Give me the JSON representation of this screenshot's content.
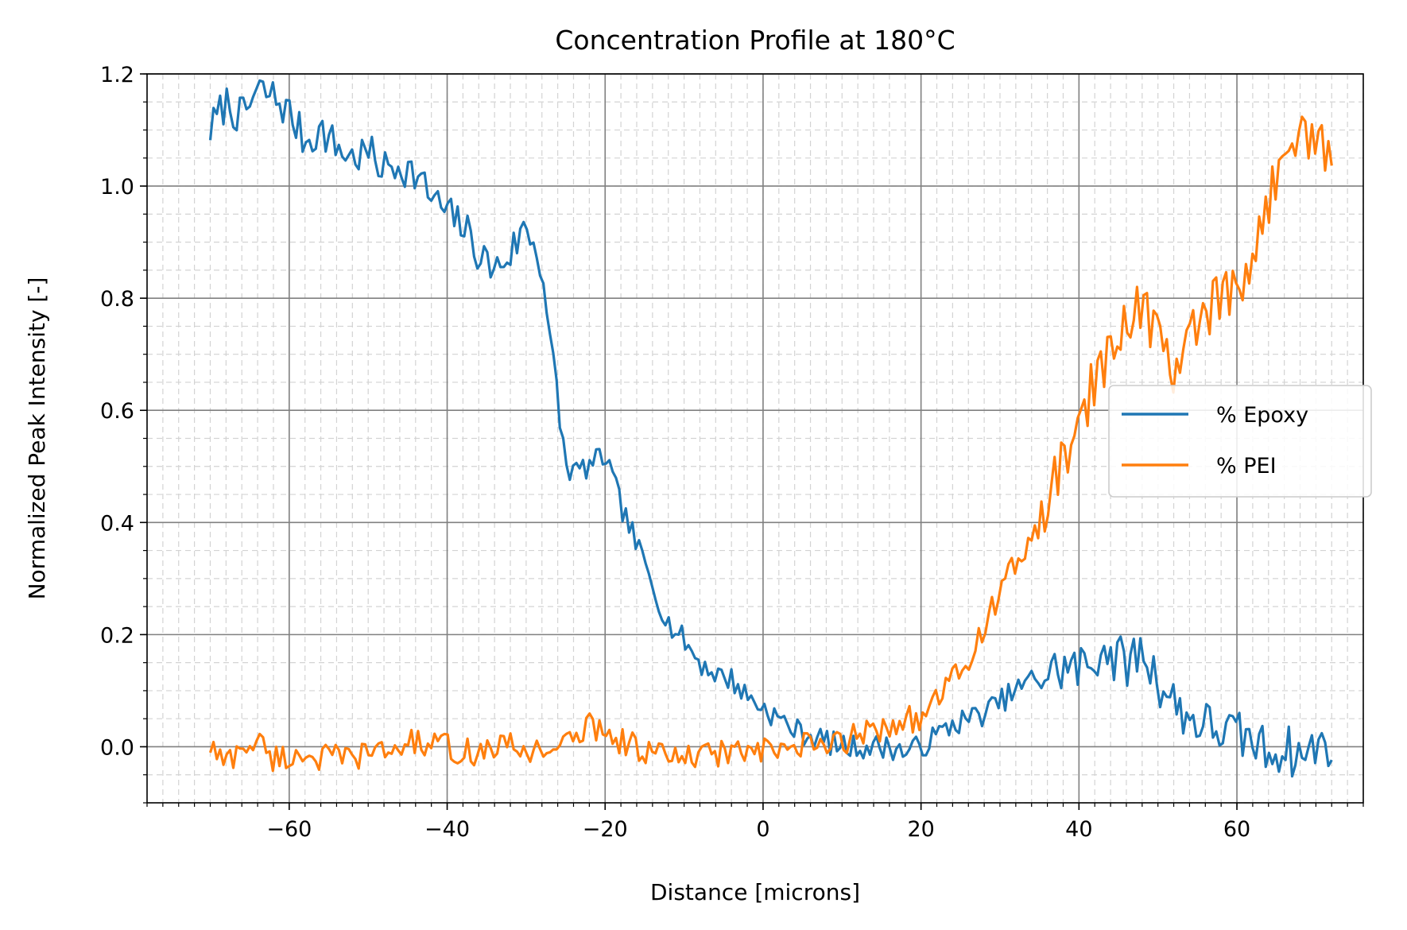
{
  "chart_data": {
    "type": "line",
    "title": "Concentration Profile at 180°C",
    "xlabel": "Distance [microns]",
    "ylabel": "Normalized Peak Intensity [-]",
    "xlim": [
      -78,
      76
    ],
    "ylim": [
      -0.1,
      1.2
    ],
    "xticks": [
      -60,
      -40,
      -20,
      0,
      20,
      40,
      60
    ],
    "xtick_labels": [
      "−60",
      "−40",
      "−20",
      "0",
      "20",
      "40",
      "60"
    ],
    "yticks": [
      0.0,
      0.2,
      0.4,
      0.6,
      0.8,
      1.0,
      1.2
    ],
    "ytick_labels": [
      "0.0",
      "0.2",
      "0.4",
      "0.6",
      "0.8",
      "1.0",
      "1.2"
    ],
    "grid": true,
    "minor_grid": true,
    "legend_position": "center-right",
    "series": [
      {
        "name": "% Epoxy",
        "color": "#1f77b4",
        "x": [
          -70,
          -68,
          -66,
          -64,
          -62,
          -60,
          -58,
          -56,
          -54,
          -52,
          -50,
          -48,
          -46,
          -44,
          -42,
          -40,
          -38,
          -36,
          -34,
          -32,
          -30,
          -28,
          -27,
          -26,
          -25,
          -24,
          -22,
          -20,
          -18,
          -16,
          -14,
          -12,
          -10,
          -8,
          -6,
          -4,
          -2,
          0,
          2,
          4,
          6,
          8,
          10,
          12,
          14,
          16,
          18,
          20,
          22,
          24,
          26,
          28,
          30,
          32,
          34,
          36,
          38,
          40,
          42,
          43,
          44,
          46,
          48,
          50,
          52,
          54,
          56,
          58,
          60,
          62,
          64,
          66,
          68,
          70,
          72
        ],
        "values": [
          1.1,
          1.15,
          1.12,
          1.17,
          1.16,
          1.13,
          1.08,
          1.1,
          1.07,
          1.05,
          1.06,
          1.03,
          1.04,
          1.02,
          0.98,
          0.95,
          0.93,
          0.88,
          0.85,
          0.88,
          0.93,
          0.86,
          0.72,
          0.62,
          0.5,
          0.49,
          0.5,
          0.52,
          0.43,
          0.36,
          0.29,
          0.22,
          0.19,
          0.15,
          0.13,
          0.12,
          0.09,
          0.07,
          0.05,
          0.03,
          0.02,
          0.01,
          0.0,
          0.0,
          0.0,
          0.0,
          -0.01,
          0.0,
          0.02,
          0.04,
          0.05,
          0.06,
          0.08,
          0.1,
          0.12,
          0.13,
          0.14,
          0.14,
          0.15,
          0.19,
          0.16,
          0.15,
          0.17,
          0.12,
          0.08,
          0.05,
          0.04,
          0.03,
          0.02,
          0.01,
          -0.01,
          0.0,
          -0.02,
          0.0,
          0.01
        ]
      },
      {
        "name": "% PEI",
        "color": "#ff7f0e",
        "x": [
          -70,
          -68,
          -66,
          -64,
          -62,
          -60,
          -58,
          -56,
          -54,
          -52,
          -50,
          -48,
          -46,
          -44,
          -42,
          -40,
          -38,
          -36,
          -34,
          -32,
          -30,
          -28,
          -26,
          -24,
          -22,
          -20,
          -18,
          -16,
          -14,
          -12,
          -10,
          -8,
          -6,
          -4,
          -2,
          0,
          2,
          4,
          6,
          8,
          10,
          12,
          14,
          16,
          18,
          20,
          22,
          24,
          26,
          28,
          30,
          32,
          34,
          36,
          38,
          40,
          42,
          44,
          46,
          48,
          50,
          52,
          54,
          56,
          58,
          60,
          62,
          64,
          66,
          68,
          70,
          72
        ],
        "values": [
          0.0,
          -0.03,
          0.0,
          0.01,
          -0.02,
          -0.02,
          -0.01,
          -0.02,
          -0.02,
          -0.02,
          -0.01,
          -0.01,
          0.0,
          0.01,
          0.0,
          0.0,
          -0.01,
          -0.01,
          0.0,
          0.0,
          -0.01,
          0.0,
          0.0,
          0.01,
          0.04,
          0.03,
          0.01,
          0.0,
          -0.01,
          -0.02,
          -0.02,
          -0.02,
          -0.01,
          -0.01,
          -0.01,
          -0.01,
          -0.01,
          0.0,
          0.0,
          0.0,
          0.01,
          0.02,
          0.03,
          0.04,
          0.05,
          0.05,
          0.08,
          0.12,
          0.15,
          0.22,
          0.27,
          0.33,
          0.36,
          0.44,
          0.5,
          0.58,
          0.65,
          0.7,
          0.76,
          0.8,
          0.72,
          0.68,
          0.72,
          0.77,
          0.8,
          0.8,
          0.85,
          0.98,
          1.06,
          1.12,
          1.08,
          1.05
        ]
      }
    ]
  }
}
